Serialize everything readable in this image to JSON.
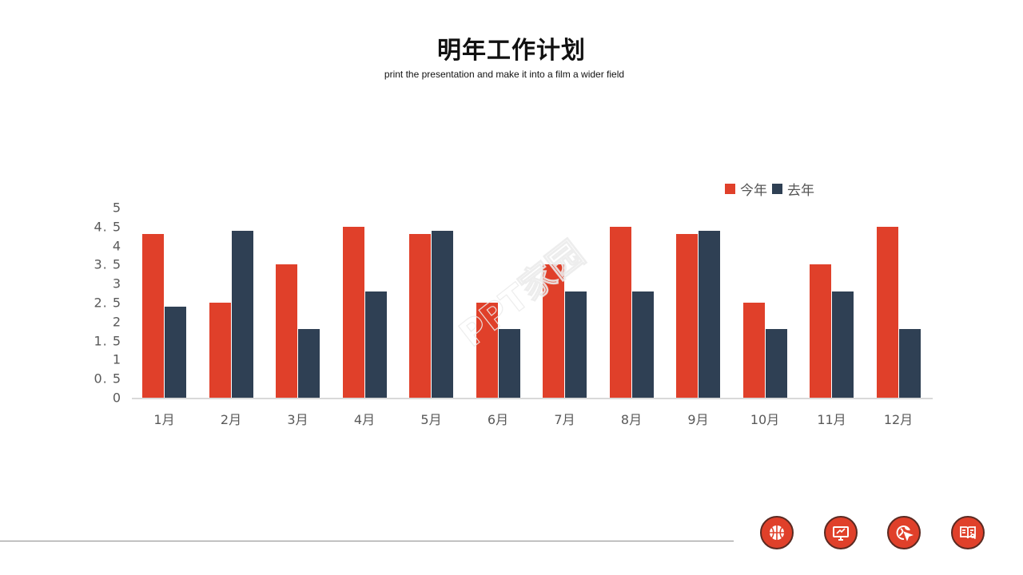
{
  "header": {
    "title": "明年工作计划",
    "subtitle": "print the presentation and make it into a film a wider field"
  },
  "legend": {
    "items": [
      {
        "label": "今年",
        "color": "#e0402a"
      },
      {
        "label": "去年",
        "color": "#2f4054"
      }
    ]
  },
  "yaxis": {
    "ticks": [
      "0",
      "0. 5",
      "1",
      "1. 5",
      "2",
      "2. 5",
      "3",
      "3. 5",
      "4",
      "4. 5",
      "5"
    ]
  },
  "xaxis": {
    "labels": [
      "1月",
      "2月",
      "3月",
      "4月",
      "5月",
      "6月",
      "7月",
      "8月",
      "9月",
      "10月",
      "11月",
      "12月"
    ]
  },
  "watermark": {
    "text": "PPT家园"
  },
  "footer": {
    "icons": [
      {
        "name": "basketball-icon"
      },
      {
        "name": "monitor-tools-icon"
      },
      {
        "name": "globe-cursor-icon"
      },
      {
        "name": "book-search-icon"
      }
    ]
  },
  "colors": {
    "current": "#e0402a",
    "previous": "#2f4054",
    "accent": "#e0402a"
  },
  "chart_data": {
    "type": "bar",
    "title": "明年工作计划",
    "subtitle": "print the presentation and make it into a film a wider field",
    "xlabel": "",
    "ylabel": "",
    "ylim": [
      0,
      5
    ],
    "ytick_step": 0.5,
    "grid": false,
    "legend_position": "top-right",
    "categories": [
      "1月",
      "2月",
      "3月",
      "4月",
      "5月",
      "6月",
      "7月",
      "8月",
      "9月",
      "10月",
      "11月",
      "12月"
    ],
    "series": [
      {
        "name": "今年",
        "color": "#e0402a",
        "values": [
          4.3,
          2.5,
          3.5,
          4.5,
          4.3,
          2.5,
          3.5,
          4.5,
          4.3,
          2.5,
          3.5,
          4.5
        ]
      },
      {
        "name": "去年",
        "color": "#2f4054",
        "values": [
          2.4,
          4.4,
          1.8,
          2.8,
          4.4,
          1.8,
          2.8,
          2.8,
          4.4,
          1.8,
          2.8,
          1.8
        ]
      }
    ]
  }
}
